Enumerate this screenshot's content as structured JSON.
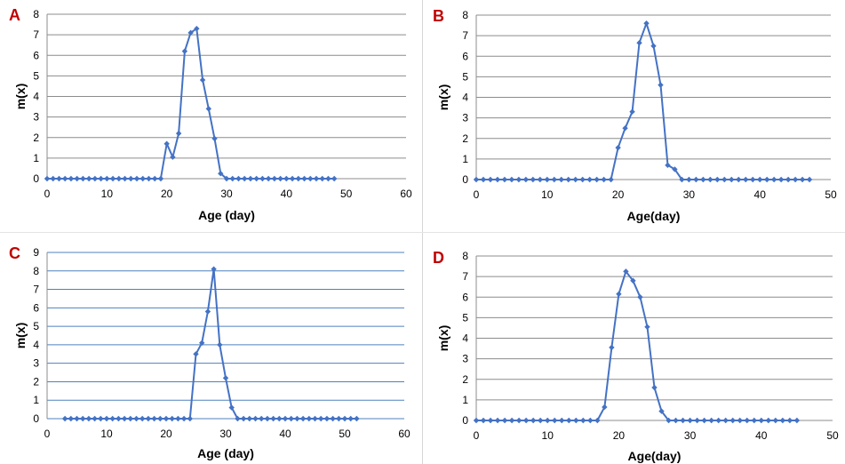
{
  "colors": {
    "series": "#4472c4",
    "panel_letter": "#c00000",
    "grid_gray": "#8c8c8c",
    "grid_blue": "#4f81bd"
  },
  "chart_data": [
    {
      "panel": "A",
      "type": "line",
      "xlabel": "Age (day)",
      "ylabel": "m(x)",
      "xlim": [
        0,
        60
      ],
      "ylim": [
        0,
        8
      ],
      "xticks": [
        0,
        10,
        20,
        30,
        40,
        50,
        60
      ],
      "yticks": [
        0,
        1,
        2,
        3,
        4,
        5,
        6,
        7,
        8
      ],
      "grid": "horizontal",
      "grid_color": "gray",
      "series": [
        {
          "x": [
            0,
            1,
            2,
            3,
            4,
            5,
            6,
            7,
            8,
            9,
            10,
            11,
            12,
            13,
            14,
            15,
            16,
            17,
            18,
            19,
            20,
            21,
            22,
            23,
            24,
            25,
            26,
            27,
            28,
            29,
            30,
            31,
            32,
            33,
            34,
            35,
            36,
            37,
            38,
            39,
            40,
            41,
            42,
            43,
            44,
            45,
            46,
            47,
            48
          ],
          "y": [
            0,
            0,
            0,
            0,
            0,
            0,
            0,
            0,
            0,
            0,
            0,
            0,
            0,
            0,
            0,
            0,
            0,
            0,
            0,
            0,
            1.7,
            1.05,
            2.2,
            6.2,
            7.1,
            7.3,
            4.8,
            3.4,
            1.95,
            0.25,
            0,
            0,
            0,
            0,
            0,
            0,
            0,
            0,
            0,
            0,
            0,
            0,
            0,
            0,
            0,
            0,
            0,
            0,
            0
          ]
        }
      ]
    },
    {
      "panel": "B",
      "type": "line",
      "xlabel": "Age(day)",
      "ylabel": "m(x)",
      "xlim": [
        0,
        50
      ],
      "ylim": [
        0,
        8
      ],
      "xticks": [
        0,
        10,
        20,
        30,
        40,
        50
      ],
      "yticks": [
        0,
        1,
        2,
        3,
        4,
        5,
        6,
        7,
        8
      ],
      "grid": "horizontal",
      "grid_color": "gray",
      "series": [
        {
          "x": [
            0,
            1,
            2,
            3,
            4,
            5,
            6,
            7,
            8,
            9,
            10,
            11,
            12,
            13,
            14,
            15,
            16,
            17,
            18,
            19,
            20,
            21,
            22,
            23,
            24,
            25,
            26,
            27,
            28,
            29,
            30,
            31,
            32,
            33,
            34,
            35,
            36,
            37,
            38,
            39,
            40,
            41,
            42,
            43,
            44,
            45,
            46,
            47
          ],
          "y": [
            0,
            0,
            0,
            0,
            0,
            0,
            0,
            0,
            0,
            0,
            0,
            0,
            0,
            0,
            0,
            0,
            0,
            0,
            0,
            0,
            1.55,
            2.5,
            3.3,
            6.65,
            7.6,
            6.5,
            4.6,
            0.7,
            0.5,
            0,
            0,
            0,
            0,
            0,
            0,
            0,
            0,
            0,
            0,
            0,
            0,
            0,
            0,
            0,
            0,
            0,
            0,
            0
          ]
        }
      ]
    },
    {
      "panel": "C",
      "type": "line",
      "xlabel": "Age (day)",
      "ylabel": "m(x)",
      "xlim": [
        0,
        60
      ],
      "ylim": [
        0,
        9
      ],
      "xticks": [
        0,
        10,
        20,
        30,
        40,
        50,
        60
      ],
      "yticks": [
        0,
        1,
        2,
        3,
        4,
        5,
        6,
        7,
        8,
        9
      ],
      "grid": "horizontal",
      "grid_color": "blue",
      "series": [
        {
          "x": [
            3,
            4,
            5,
            6,
            7,
            8,
            9,
            10,
            11,
            12,
            13,
            14,
            15,
            16,
            17,
            18,
            19,
            20,
            21,
            22,
            23,
            24,
            25,
            26,
            27,
            28,
            29,
            30,
            31,
            32,
            33,
            34,
            35,
            36,
            37,
            38,
            39,
            40,
            41,
            42,
            43,
            44,
            45,
            46,
            47,
            48,
            49,
            50,
            51,
            52
          ],
          "y": [
            0,
            0,
            0,
            0,
            0,
            0,
            0,
            0,
            0,
            0,
            0,
            0,
            0,
            0,
            0,
            0,
            0,
            0,
            0,
            0,
            0,
            0,
            3.5,
            4.1,
            5.8,
            8.1,
            4.0,
            2.2,
            0.6,
            0,
            0,
            0,
            0,
            0,
            0,
            0,
            0,
            0,
            0,
            0,
            0,
            0,
            0,
            0,
            0,
            0,
            0,
            0,
            0,
            0
          ]
        }
      ]
    },
    {
      "panel": "D",
      "type": "line",
      "xlabel": "Age(day)",
      "ylabel": "m(x)",
      "xlim": [
        0,
        50
      ],
      "ylim": [
        0,
        8
      ],
      "xticks": [
        0,
        10,
        20,
        30,
        40,
        50
      ],
      "yticks": [
        0,
        1,
        2,
        3,
        4,
        5,
        6,
        7,
        8
      ],
      "grid": "horizontal",
      "grid_color": "gray",
      "series": [
        {
          "x": [
            0,
            1,
            2,
            3,
            4,
            5,
            6,
            7,
            8,
            9,
            10,
            11,
            12,
            13,
            14,
            15,
            16,
            17,
            18,
            19,
            20,
            21,
            22,
            23,
            24,
            25,
            26,
            27,
            28,
            29,
            30,
            31,
            32,
            33,
            34,
            35,
            36,
            37,
            38,
            39,
            40,
            41,
            42,
            43,
            44,
            45
          ],
          "y": [
            0,
            0,
            0,
            0,
            0,
            0,
            0,
            0,
            0,
            0,
            0,
            0,
            0,
            0,
            0,
            0,
            0,
            0,
            0.65,
            3.55,
            6.15,
            7.25,
            6.8,
            6.0,
            4.55,
            1.6,
            0.45,
            0,
            0,
            0,
            0,
            0,
            0,
            0,
            0,
            0,
            0,
            0,
            0,
            0,
            0,
            0,
            0,
            0,
            0,
            0
          ]
        }
      ]
    }
  ]
}
